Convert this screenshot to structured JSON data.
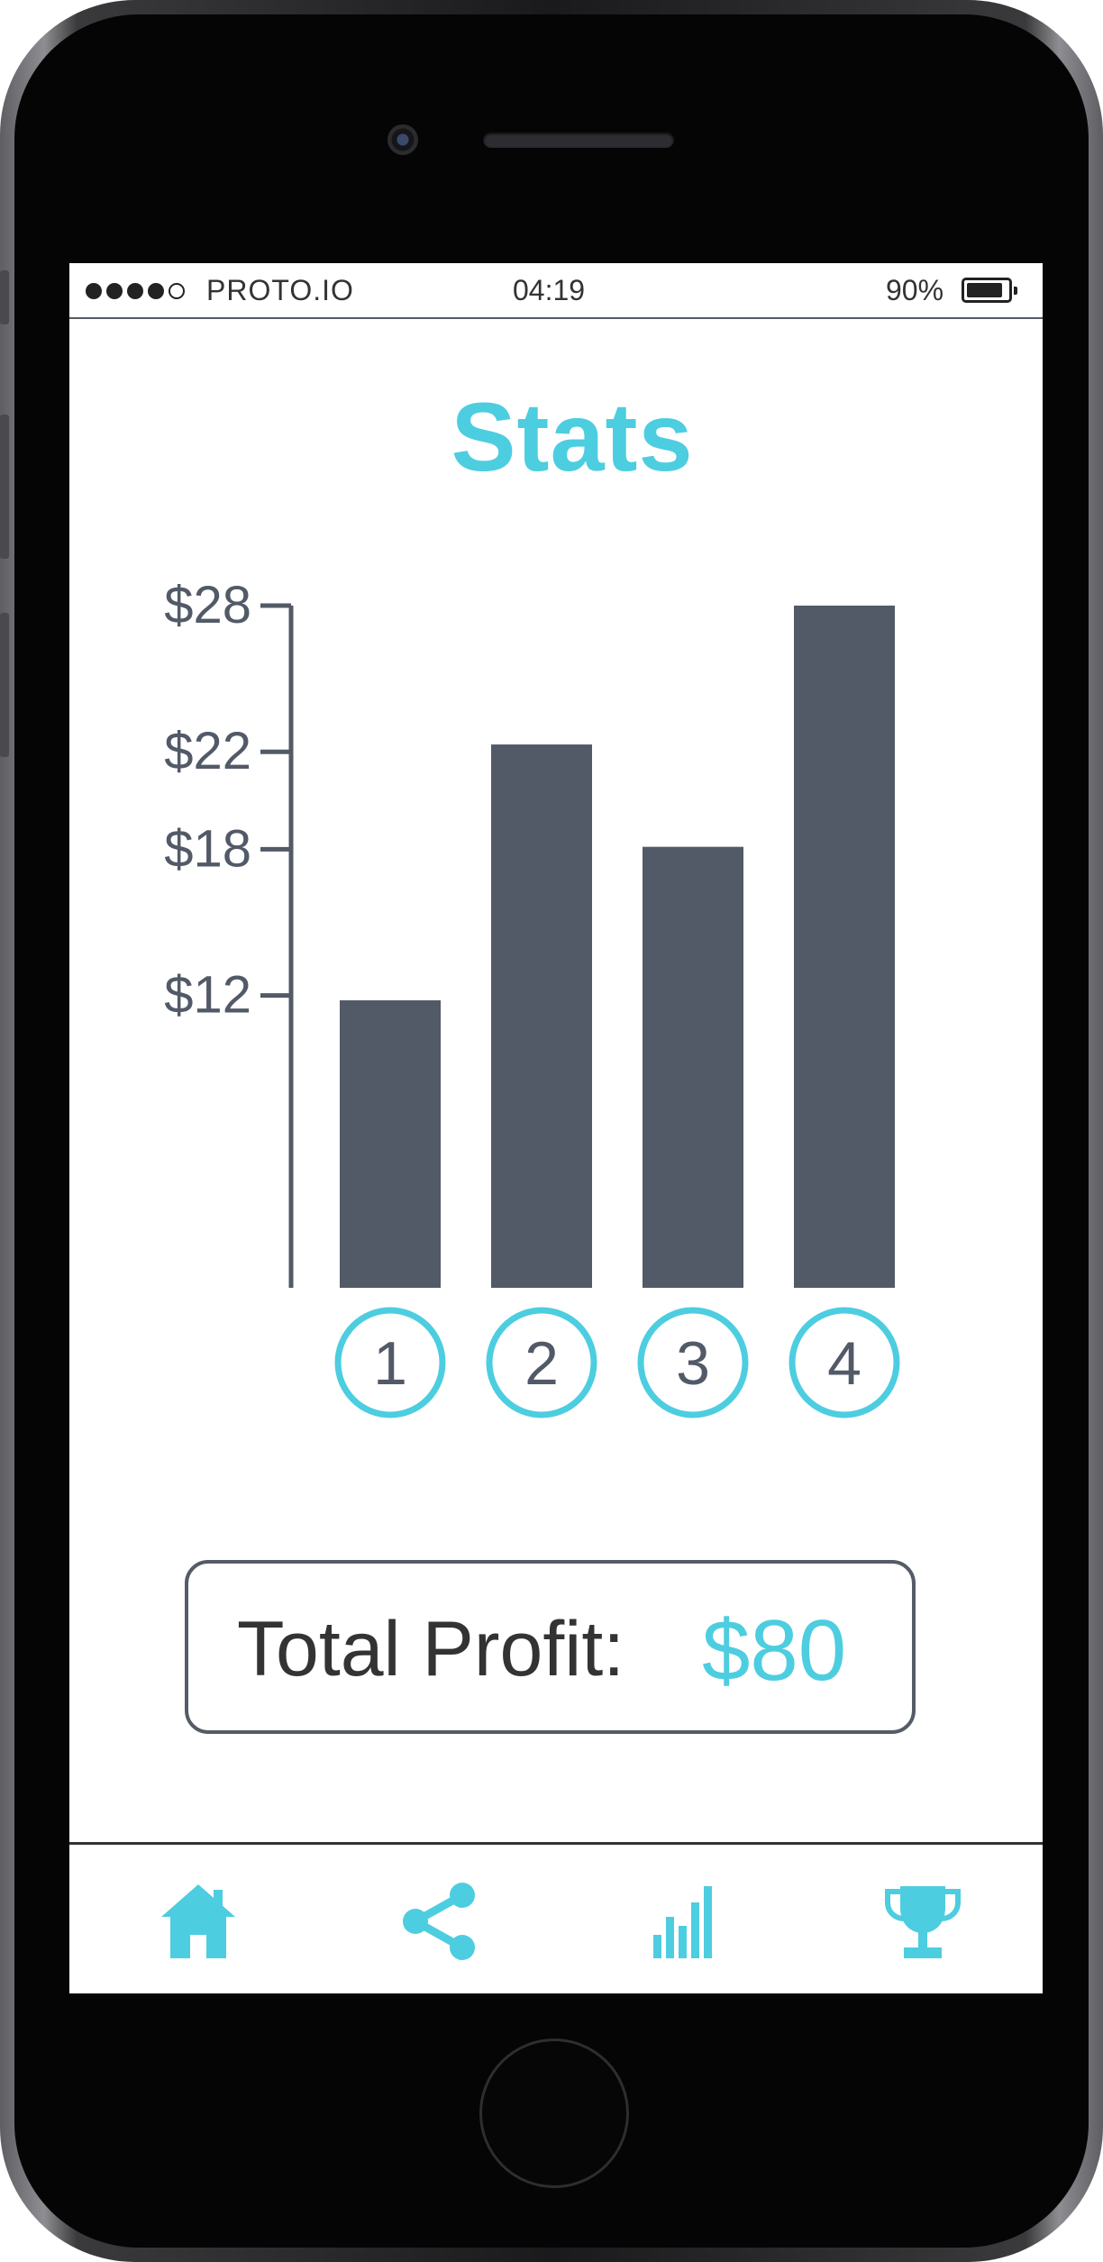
{
  "status_bar": {
    "carrier": "PROTO.IO",
    "time": "04:19",
    "battery": "90%",
    "signal_bars_filled": 4,
    "signal_bars_total": 5
  },
  "title": "Stats",
  "chart_data": {
    "type": "bar",
    "categories": [
      "1",
      "2",
      "3",
      "4"
    ],
    "values": [
      11.8,
      22.3,
      18.1,
      28
    ],
    "ytick_labels": [
      "$28",
      "$22",
      "$18",
      "$12"
    ],
    "ytick_values": [
      28,
      22,
      18,
      12
    ],
    "ylim": [
      0,
      28
    ],
    "bar_color": "#525a67",
    "circle_color": "#4dcde0",
    "axis_color": "#525a67",
    "grid": false
  },
  "total": {
    "label": "Total Profit:",
    "value": "$80"
  },
  "tab_bar": {
    "accent_color": "#4dcde0",
    "items": [
      {
        "icon": "home-icon",
        "label": "Home"
      },
      {
        "icon": "share-icon",
        "label": "Share"
      },
      {
        "icon": "bar-chart-icon",
        "label": "Stats"
      },
      {
        "icon": "trophy-icon",
        "label": "Achievements"
      }
    ]
  }
}
